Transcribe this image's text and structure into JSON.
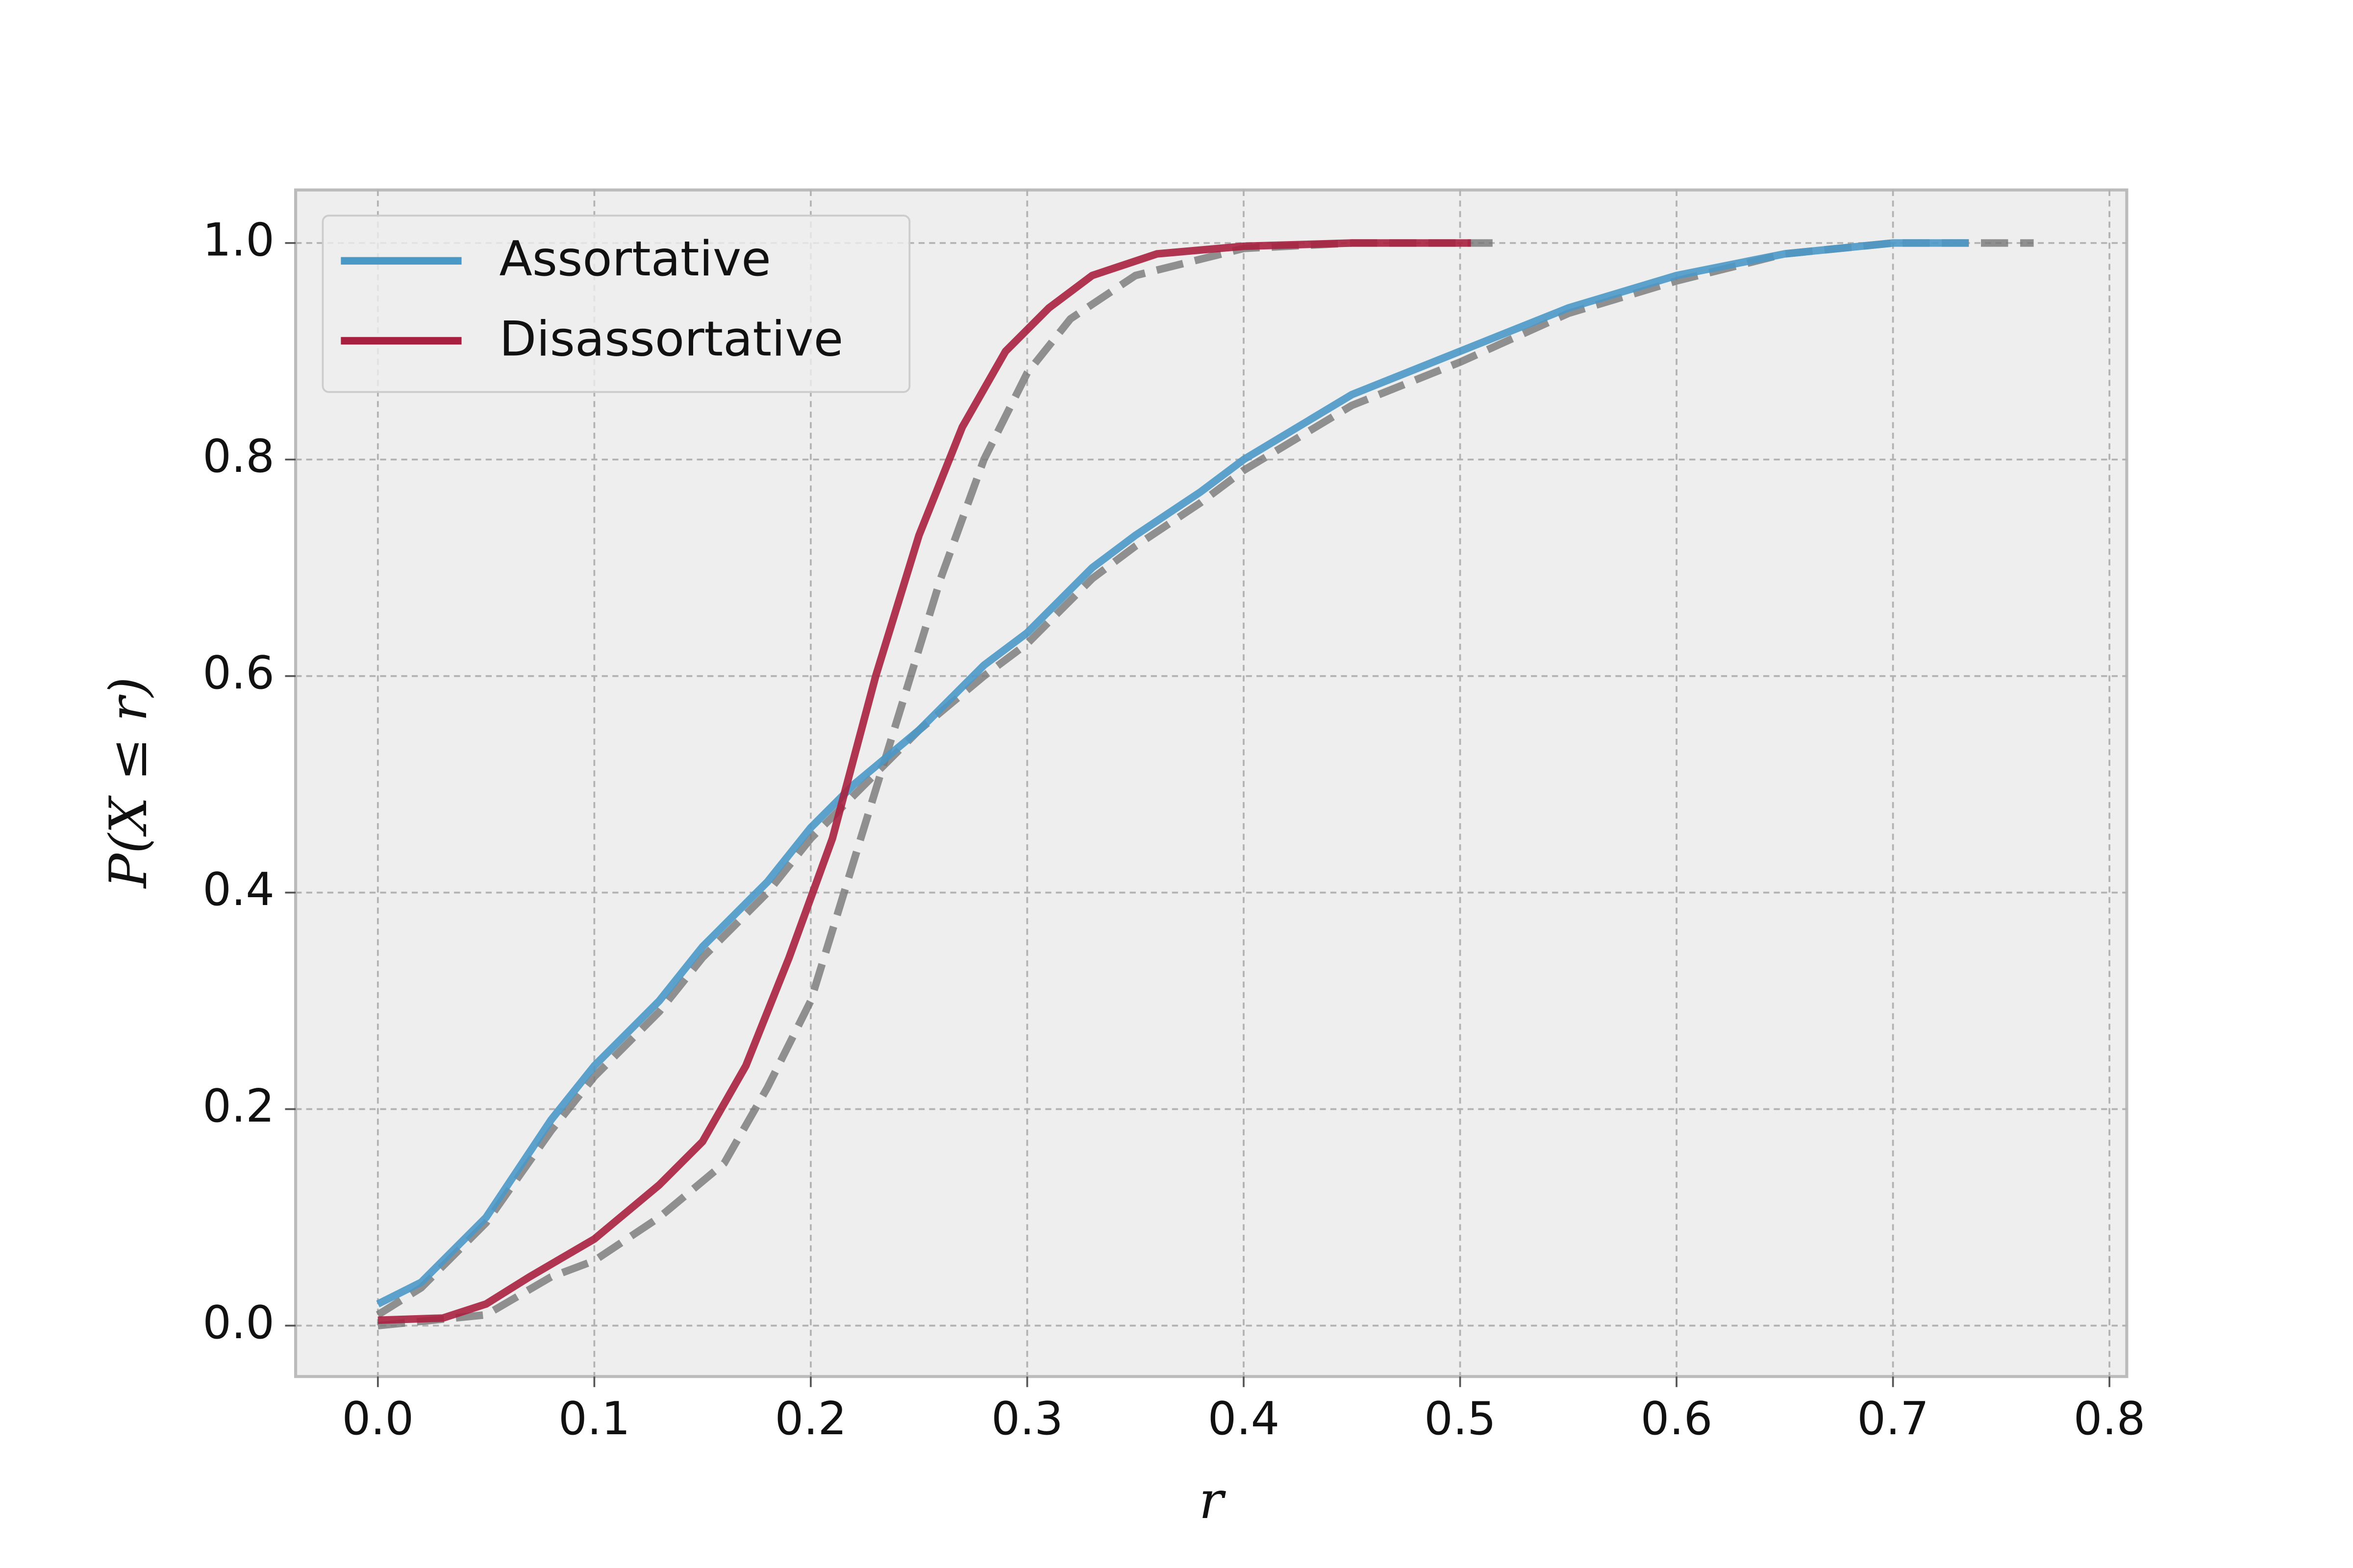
{
  "chart_data": {
    "type": "line",
    "xlabel": "r",
    "ylabel": "P(X ≤ r)",
    "xlim": [
      -0.038,
      0.808
    ],
    "ylim": [
      -0.047,
      1.049
    ],
    "xticks": [
      {
        "value": 0,
        "label": "0.0"
      },
      0.1,
      0.2,
      0.3,
      0.4,
      0.5,
      0.6,
      0.7,
      0.8
    ],
    "yticks": [
      {
        "value": 0,
        "label": "0.0"
      },
      0.2,
      0.4,
      0.6,
      0.8,
      {
        "value": 1,
        "label": "1.0"
      }
    ],
    "grid": true,
    "legend": "upper left",
    "series": [
      {
        "color": "#777777",
        "style": "dashed",
        "x": [
          0,
          0.02,
          0.05,
          0.08,
          0.1,
          0.13,
          0.15,
          0.18,
          0.2,
          0.22,
          0.25,
          0.28,
          0.3,
          0.33,
          0.35,
          0.38,
          0.4,
          0.45,
          0.5,
          0.55,
          0.6,
          0.65,
          0.7,
          0.765
        ],
        "values": [
          0.01,
          0.035,
          0.095,
          0.18,
          0.23,
          0.29,
          0.34,
          0.4,
          0.45,
          0.49,
          0.55,
          0.6,
          0.63,
          0.69,
          0.72,
          0.76,
          0.79,
          0.85,
          0.89,
          0.935,
          0.965,
          0.99,
          1.0,
          1.0
        ]
      },
      {
        "color": "#777777",
        "style": "dashed",
        "x": [
          0,
          0.05,
          0.08,
          0.1,
          0.13,
          0.16,
          0.18,
          0.2,
          0.22,
          0.24,
          0.26,
          0.28,
          0.3,
          0.32,
          0.35,
          0.4,
          0.45,
          0.515
        ],
        "values": [
          0,
          0.01,
          0.045,
          0.06,
          0.1,
          0.15,
          0.22,
          0.3,
          0.43,
          0.56,
          0.69,
          0.8,
          0.88,
          0.93,
          0.97,
          0.995,
          1.0,
          1.0
        ]
      },
      {
        "name": "Assortative",
        "color": "#4a98c6",
        "x": [
          0,
          0.02,
          0.05,
          0.08,
          0.1,
          0.13,
          0.15,
          0.18,
          0.2,
          0.22,
          0.25,
          0.28,
          0.3,
          0.33,
          0.35,
          0.38,
          0.4,
          0.45,
          0.5,
          0.55,
          0.6,
          0.65,
          0.7,
          0.735
        ],
        "values": [
          0.02,
          0.04,
          0.1,
          0.19,
          0.24,
          0.3,
          0.35,
          0.41,
          0.46,
          0.5,
          0.55,
          0.61,
          0.64,
          0.7,
          0.73,
          0.77,
          0.8,
          0.86,
          0.9,
          0.94,
          0.97,
          0.99,
          1.0,
          1.0
        ]
      },
      {
        "name": "Disassortative",
        "color": "#a8203f",
        "x": [
          0,
          0.03,
          0.05,
          0.07,
          0.1,
          0.13,
          0.15,
          0.17,
          0.19,
          0.21,
          0.23,
          0.25,
          0.27,
          0.29,
          0.31,
          0.33,
          0.36,
          0.4,
          0.45,
          0.505
        ],
        "values": [
          0.005,
          0.007,
          0.02,
          0.045,
          0.08,
          0.13,
          0.17,
          0.24,
          0.34,
          0.45,
          0.6,
          0.73,
          0.83,
          0.9,
          0.94,
          0.97,
          0.99,
          0.997,
          1.0,
          1.0
        ]
      }
    ]
  }
}
